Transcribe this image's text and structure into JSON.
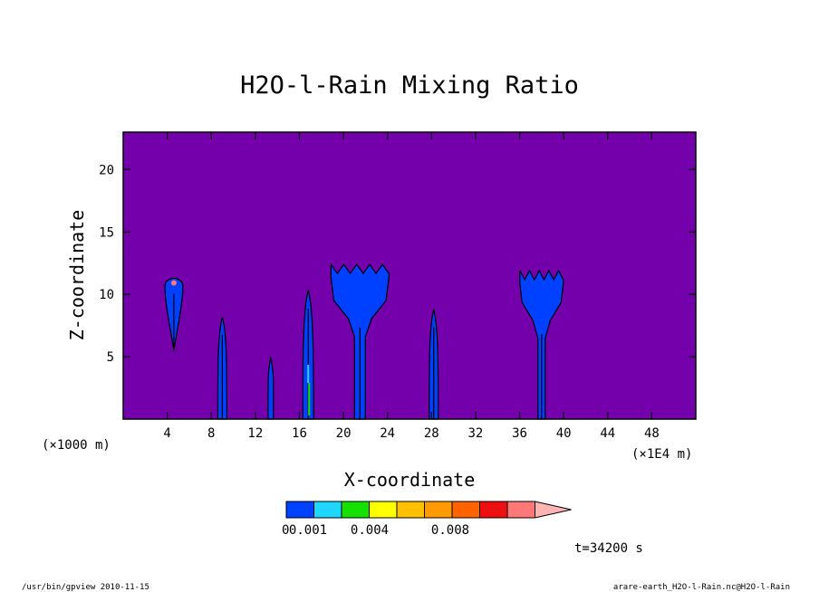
{
  "chart_data": {
    "type": "contour",
    "title": "H2O-l-Rain Mixing Ratio",
    "xlabel": "X-coordinate",
    "ylabel": "Z-coordinate",
    "x_unit_left": "(×1000 m)",
    "x_unit_right": "(×1E4 m)",
    "xlim": [
      0,
      52
    ],
    "ylim": [
      0,
      23
    ],
    "x_ticks": [
      "4",
      "8",
      "12",
      "16",
      "20",
      "24",
      "28",
      "32",
      "36",
      "40",
      "44",
      "48"
    ],
    "x_tick_values": [
      4,
      8,
      12,
      16,
      20,
      24,
      28,
      32,
      36,
      40,
      44,
      48
    ],
    "y_ticks": [
      "5",
      "10",
      "15",
      "20"
    ],
    "y_tick_values": [
      5,
      10,
      15,
      20
    ],
    "background_color": "#7300ab",
    "cells": [
      {
        "x": 4.6,
        "z_top": 11.5,
        "z_bottom": 5.5
      },
      {
        "x": 9.0,
        "z_top": 8.2,
        "z_bottom": 0
      },
      {
        "x": 13.4,
        "z_top": 5.0,
        "z_bottom": 0
      },
      {
        "x": 16.8,
        "z_top": 10.3,
        "z_bottom": 0
      },
      {
        "x": 21.5,
        "z_top": 12.4,
        "z_bottom": 0
      },
      {
        "x": 28.2,
        "z_top": 8.8,
        "z_bottom": 0
      },
      {
        "x": 38.0,
        "z_top": 11.9,
        "z_bottom": 0
      }
    ],
    "colorbar": {
      "colors": [
        "#0040ff",
        "#1fd6ff",
        "#16e000",
        "#ffff00",
        "#ffc000",
        "#ff9a00",
        "#ff6200",
        "#ee1010",
        "#ff7878",
        "#ffb4b4"
      ],
      "labels": [
        "0.001",
        "0.004",
        "0.008"
      ],
      "label_prefix": "0",
      "label_positions": [
        0.001,
        0.004,
        0.008
      ]
    }
  },
  "time_label": "t=34200 s",
  "footer": {
    "left": "/usr/bin/gpview   2010-11-15",
    "right": "arare-earth_H2O-l-Rain.nc@H2O-l-Rain"
  }
}
